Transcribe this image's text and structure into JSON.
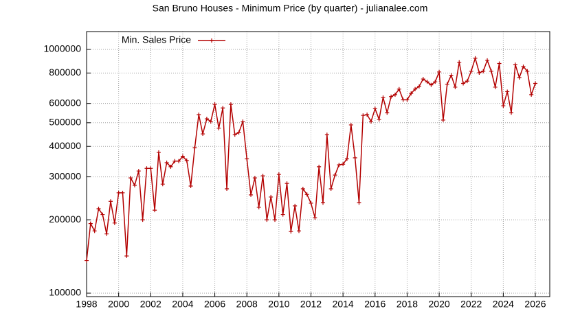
{
  "chart_data": {
    "type": "line",
    "title": "San Bruno Houses - Minimum Price (by quarter) - julianalee.com",
    "x": [
      1998,
      1998.25,
      1998.5,
      1998.75,
      1999,
      1999.25,
      1999.5,
      1999.75,
      2000,
      2000.25,
      2000.5,
      2000.75,
      2001,
      2001.25,
      2001.5,
      2001.75,
      2002,
      2002.25,
      2002.5,
      2002.75,
      2003,
      2003.25,
      2003.5,
      2003.75,
      2004,
      2004.25,
      2004.5,
      2004.75,
      2005,
      2005.25,
      2005.5,
      2005.75,
      2006,
      2006.25,
      2006.5,
      2006.75,
      2007,
      2007.25,
      2007.5,
      2007.75,
      2008,
      2008.25,
      2008.5,
      2008.75,
      2009,
      2009.25,
      2009.5,
      2009.75,
      2010,
      2010.25,
      2010.5,
      2010.75,
      2011,
      2011.25,
      2011.5,
      2011.75,
      2012,
      2012.25,
      2012.5,
      2012.75,
      2013,
      2013.25,
      2013.5,
      2013.75,
      2014,
      2014.25,
      2014.5,
      2014.75,
      2015,
      2015.25,
      2015.5,
      2015.75,
      2016,
      2016.25,
      2016.5,
      2016.75,
      2017,
      2017.25,
      2017.5,
      2017.75,
      2018,
      2018.25,
      2018.5,
      2018.75,
      2019,
      2019.25,
      2019.5,
      2019.75,
      2020,
      2020.25,
      2020.5,
      2020.75,
      2021,
      2021.25,
      2021.5,
      2021.75,
      2022,
      2022.25,
      2022.5,
      2022.75,
      2023,
      2023.25,
      2023.5,
      2023.75,
      2024,
      2024.25,
      2024.5,
      2024.75,
      2025,
      2025.25,
      2025.5,
      2025.75,
      2026
    ],
    "series": [
      {
        "name": "Min. Sales Price",
        "color": "#b30000",
        "values": [
          136000,
          193000,
          180000,
          222000,
          210000,
          175000,
          238000,
          194000,
          258000,
          258000,
          142000,
          297000,
          277000,
          317000,
          200000,
          325000,
          325000,
          219000,
          378000,
          280000,
          343000,
          330000,
          348000,
          348000,
          364000,
          350000,
          275000,
          395000,
          540000,
          450000,
          519000,
          506000,
          595000,
          475000,
          575000,
          268000,
          595000,
          447000,
          456000,
          506000,
          356000,
          253000,
          297000,
          225000,
          303000,
          200000,
          248000,
          200000,
          307000,
          210000,
          282000,
          179000,
          228000,
          180000,
          268000,
          254000,
          234000,
          204000,
          330000,
          235000,
          447000,
          268000,
          305000,
          336000,
          338000,
          356000,
          490000,
          359000,
          235000,
          536000,
          540000,
          506000,
          571000,
          516000,
          635000,
          550000,
          640000,
          652000,
          687000,
          621000,
          621000,
          660000,
          687000,
          705000,
          756000,
          736000,
          715000,
          736000,
          808000,
          513000,
          720000,
          783000,
          700000,
          886000,
          725000,
          741000,
          814000,
          920000,
          802000,
          814000,
          902000,
          814000,
          700000,
          875000,
          587000,
          671000,
          550000,
          866000,
          766000,
          850000,
          814000,
          652000,
          725000
        ]
      }
    ],
    "xlim": [
      1998,
      2026.9
    ],
    "xticks": [
      1998,
      2000,
      2002,
      2004,
      2006,
      2008,
      2010,
      2012,
      2014,
      2016,
      2018,
      2020,
      2022,
      2024,
      2026
    ],
    "ylim": [
      96800,
      1183000
    ],
    "log_y": true,
    "yticks": [
      100000,
      200000,
      300000,
      400000,
      500000,
      600000,
      800000,
      1000000
    ],
    "grid": true,
    "legend": "top-left"
  }
}
